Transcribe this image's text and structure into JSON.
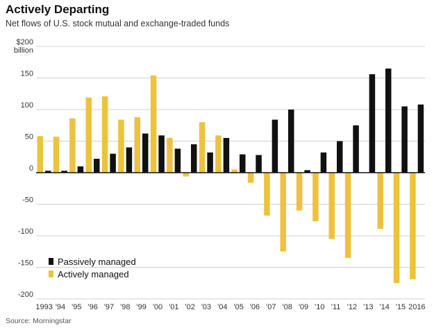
{
  "header": {
    "title": "Actively Departing",
    "subtitle": "Net flows of U.S. stock mutual and exchange-traded funds"
  },
  "footer": {
    "source": "Source: Morningstar"
  },
  "colors": {
    "passive": "#111111",
    "active": "#EEC23E",
    "grid": "#d0d0d0",
    "zero": "#111111"
  },
  "chart_data": {
    "type": "bar",
    "title": "Actively Departing",
    "subtitle": "Net flows of U.S. stock mutual and exchange-traded funds",
    "xlabel": "",
    "ylabel": "$ billion",
    "ylim": [
      -200,
      200
    ],
    "yticks": [
      200,
      150,
      100,
      50,
      0,
      -50,
      -100,
      -150,
      -200
    ],
    "ytick_labels": [
      "$200",
      "150",
      "100",
      "50",
      "0",
      "-50",
      "-100",
      "-150",
      "-200"
    ],
    "ytick_unit": "billion",
    "categories": [
      "1993",
      "'94",
      "'95",
      "'96",
      "'97",
      "'98",
      "'99",
      "'00",
      "'01",
      "'02",
      "'03",
      "'04",
      "'05",
      "'06",
      "'07",
      "'08",
      "'09",
      "'10",
      "'11",
      "'12",
      "'13",
      "'14",
      "'15",
      "2016"
    ],
    "series": [
      {
        "name": "Actively managed",
        "values": [
          58,
          57,
          86,
          119,
          121,
          84,
          88,
          154,
          55,
          -6,
          80,
          59,
          5,
          -16,
          -68,
          -125,
          -60,
          -77,
          -105,
          -135,
          0,
          -89,
          -175,
          -169
        ]
      },
      {
        "name": "Passively managed",
        "values": [
          3,
          3,
          10,
          22,
          30,
          40,
          62,
          59,
          38,
          45,
          32,
          55,
          29,
          28,
          84,
          100,
          4,
          32,
          50,
          75,
          156,
          165,
          105,
          108
        ]
      }
    ],
    "legend": [
      "Passively managed",
      "Actively managed"
    ],
    "legend_position": "bottom-left",
    "grid": true
  }
}
